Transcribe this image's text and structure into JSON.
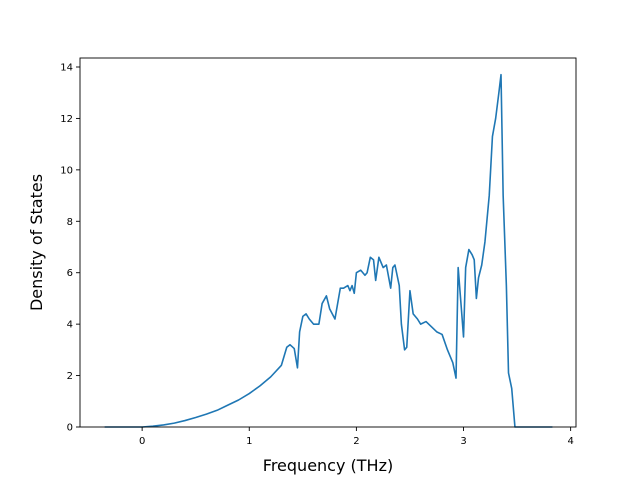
{
  "chart_data": {
    "type": "line",
    "title": "",
    "xlabel": "Frequency (THz)",
    "ylabel": "Density of States",
    "xlim": [
      -0.58,
      4.05
    ],
    "ylim": [
      0,
      14.35
    ],
    "xticks": [
      0,
      1,
      2,
      3,
      4
    ],
    "yticks": [
      0,
      2,
      4,
      6,
      8,
      10,
      12,
      14
    ],
    "grid": false,
    "legend": "none",
    "colors": {
      "line": "#1f77b4",
      "axes": "#000000",
      "background": "#ffffff"
    },
    "series": [
      {
        "x": [
          -0.35,
          -0.2,
          0.0,
          0.1,
          0.2,
          0.3,
          0.4,
          0.5,
          0.6,
          0.7,
          0.8,
          0.9,
          1.0,
          1.1,
          1.2,
          1.3,
          1.35,
          1.38,
          1.42,
          1.45,
          1.47,
          1.5,
          1.53,
          1.56,
          1.6,
          1.65,
          1.68,
          1.72,
          1.75,
          1.8,
          1.85,
          1.88,
          1.92,
          1.94,
          1.96,
          1.98,
          2.0,
          2.04,
          2.08,
          2.1,
          2.13,
          2.16,
          2.18,
          2.21,
          2.25,
          2.28,
          2.32,
          2.34,
          2.36,
          2.4,
          2.42,
          2.45,
          2.47,
          2.5,
          2.53,
          2.57,
          2.6,
          2.65,
          2.7,
          2.75,
          2.8,
          2.85,
          2.9,
          2.93,
          2.95,
          2.98,
          3.0,
          3.02,
          3.05,
          3.08,
          3.1,
          3.12,
          3.14,
          3.17,
          3.2,
          3.24,
          3.27,
          3.3,
          3.33,
          3.35,
          3.37,
          3.4,
          3.42,
          3.45,
          3.48,
          3.5,
          3.6,
          3.7,
          3.83
        ],
        "y": [
          0.0,
          0.0,
          0.0,
          0.03,
          0.08,
          0.15,
          0.25,
          0.37,
          0.5,
          0.65,
          0.85,
          1.05,
          1.3,
          1.6,
          1.95,
          2.4,
          3.1,
          3.2,
          3.05,
          2.3,
          3.7,
          4.3,
          4.4,
          4.2,
          4.0,
          4.0,
          4.8,
          5.1,
          4.6,
          4.2,
          5.4,
          5.4,
          5.5,
          5.3,
          5.5,
          5.2,
          6.0,
          6.1,
          5.9,
          6.0,
          6.6,
          6.5,
          5.7,
          6.6,
          6.2,
          6.3,
          5.4,
          6.2,
          6.3,
          5.5,
          4.0,
          3.0,
          3.1,
          5.3,
          4.4,
          4.2,
          4.0,
          4.1,
          3.9,
          3.7,
          3.6,
          3.0,
          2.5,
          1.9,
          6.2,
          4.6,
          3.5,
          6.2,
          6.9,
          6.7,
          6.5,
          5.0,
          5.8,
          6.3,
          7.2,
          9.0,
          11.3,
          12.0,
          13.0,
          13.7,
          9.0,
          5.5,
          2.1,
          1.5,
          0.0,
          0.0,
          0.0,
          0.0,
          0.0
        ]
      }
    ]
  }
}
